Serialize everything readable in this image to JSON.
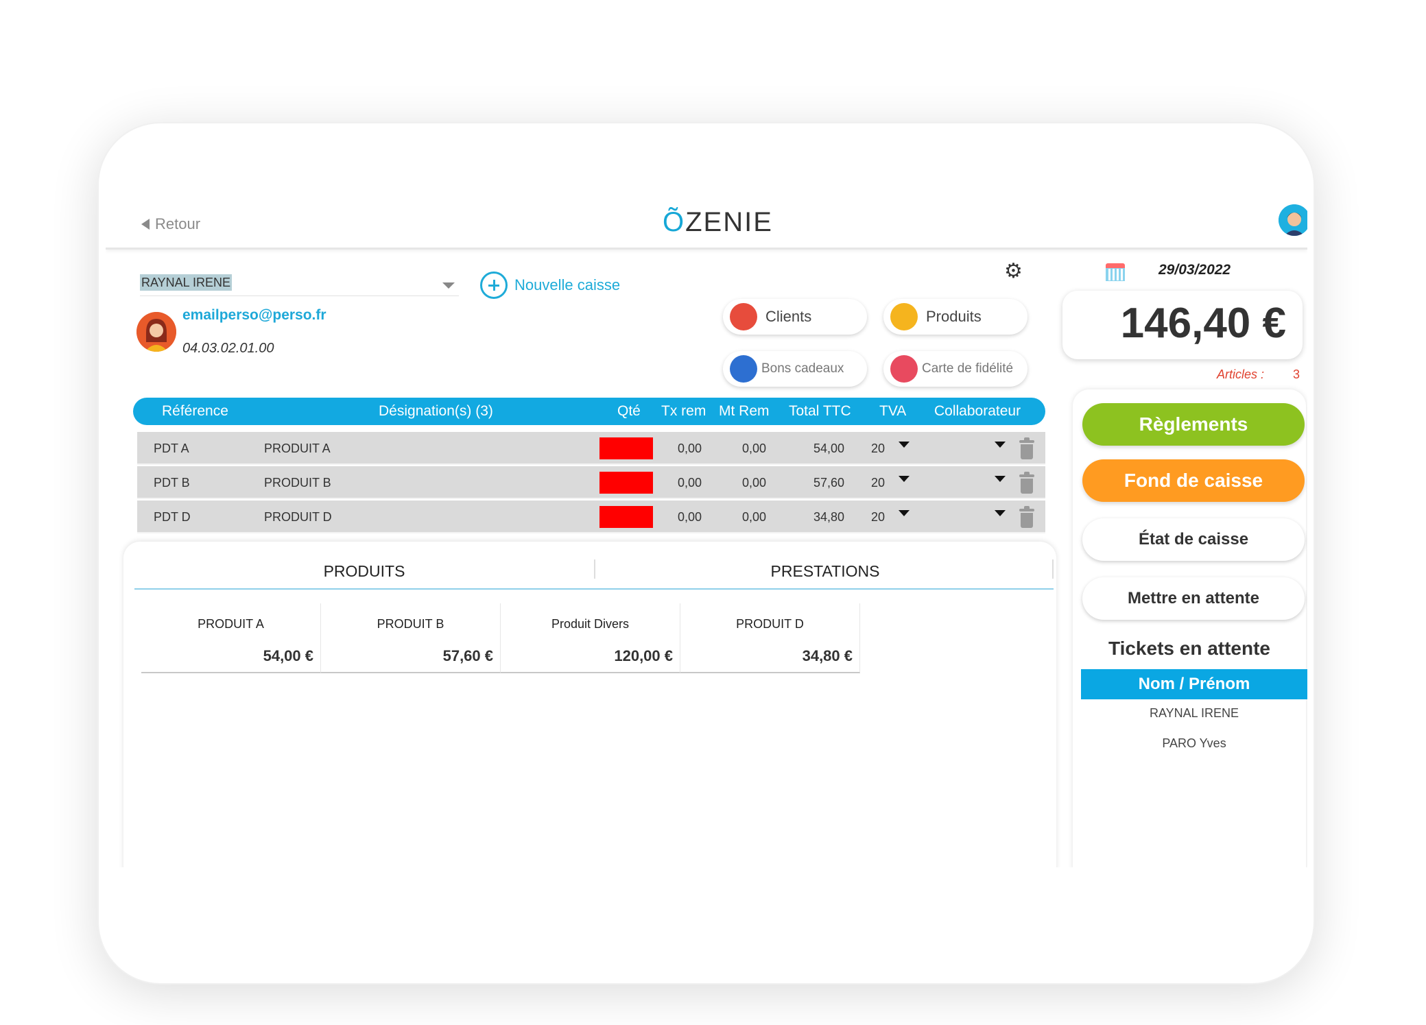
{
  "header": {
    "back_label": "Retour",
    "logo_mark": "Õ",
    "logo_text": "ZENIE"
  },
  "client": {
    "name": "RAYNAL IRENE",
    "email": "emailperso@perso.fr",
    "phone": "04.03.02.01.00",
    "new_caisse_label": "Nouvelle caisse"
  },
  "quick_actions": {
    "clients": "Clients",
    "produits": "Produits",
    "bons_cadeaux": "Bons cadeaux",
    "carte_fidelite": "Carte de fidélité"
  },
  "table": {
    "columns": [
      "Référence",
      "Désignation(s) (3)",
      "Qté",
      "Tx rem",
      "Mt Rem",
      "Total TTC",
      "TVA",
      "Collaborateur"
    ],
    "rows": [
      {
        "ref": "PDT A",
        "designation": "PRODUIT A",
        "tx_rem": "0,00",
        "mt_rem": "0,00",
        "total": "54,00",
        "tva": "20"
      },
      {
        "ref": "PDT B",
        "designation": "PRODUIT B",
        "tx_rem": "0,00",
        "mt_rem": "0,00",
        "total": "57,60",
        "tva": "20"
      },
      {
        "ref": "PDT D",
        "designation": "PRODUIT D",
        "tx_rem": "0,00",
        "mt_rem": "0,00",
        "total": "34,80",
        "tva": "20"
      }
    ],
    "qte_color": "#ff0000"
  },
  "catalog": {
    "tabs": [
      "PRODUITS",
      "PRESTATIONS"
    ],
    "products": [
      {
        "name": "PRODUIT A",
        "price": "54,00 €"
      },
      {
        "name": "PRODUIT B",
        "price": "57,60 €"
      },
      {
        "name": "Produit Divers",
        "price": "120,00 €"
      },
      {
        "name": "PRODUIT D",
        "price": "34,80 €"
      }
    ]
  },
  "summary": {
    "date": "29/03/2022",
    "total": "146,40 €",
    "articles_label": "Articles :",
    "articles_count": "3"
  },
  "actions": {
    "reglements": "Règlements",
    "fond_de_caisse": "Fond de caisse",
    "etat_de_caisse": "État de caisse",
    "mettre_en_attente": "Mettre en attente"
  },
  "tickets": {
    "title": "Tickets en attente",
    "header": "Nom / Prénom",
    "items": [
      "RAYNAL IRENE",
      "PARO Yves"
    ]
  },
  "colors": {
    "accent": "#12a9e1",
    "green": "#8dc220",
    "orange": "#ff9b21"
  }
}
